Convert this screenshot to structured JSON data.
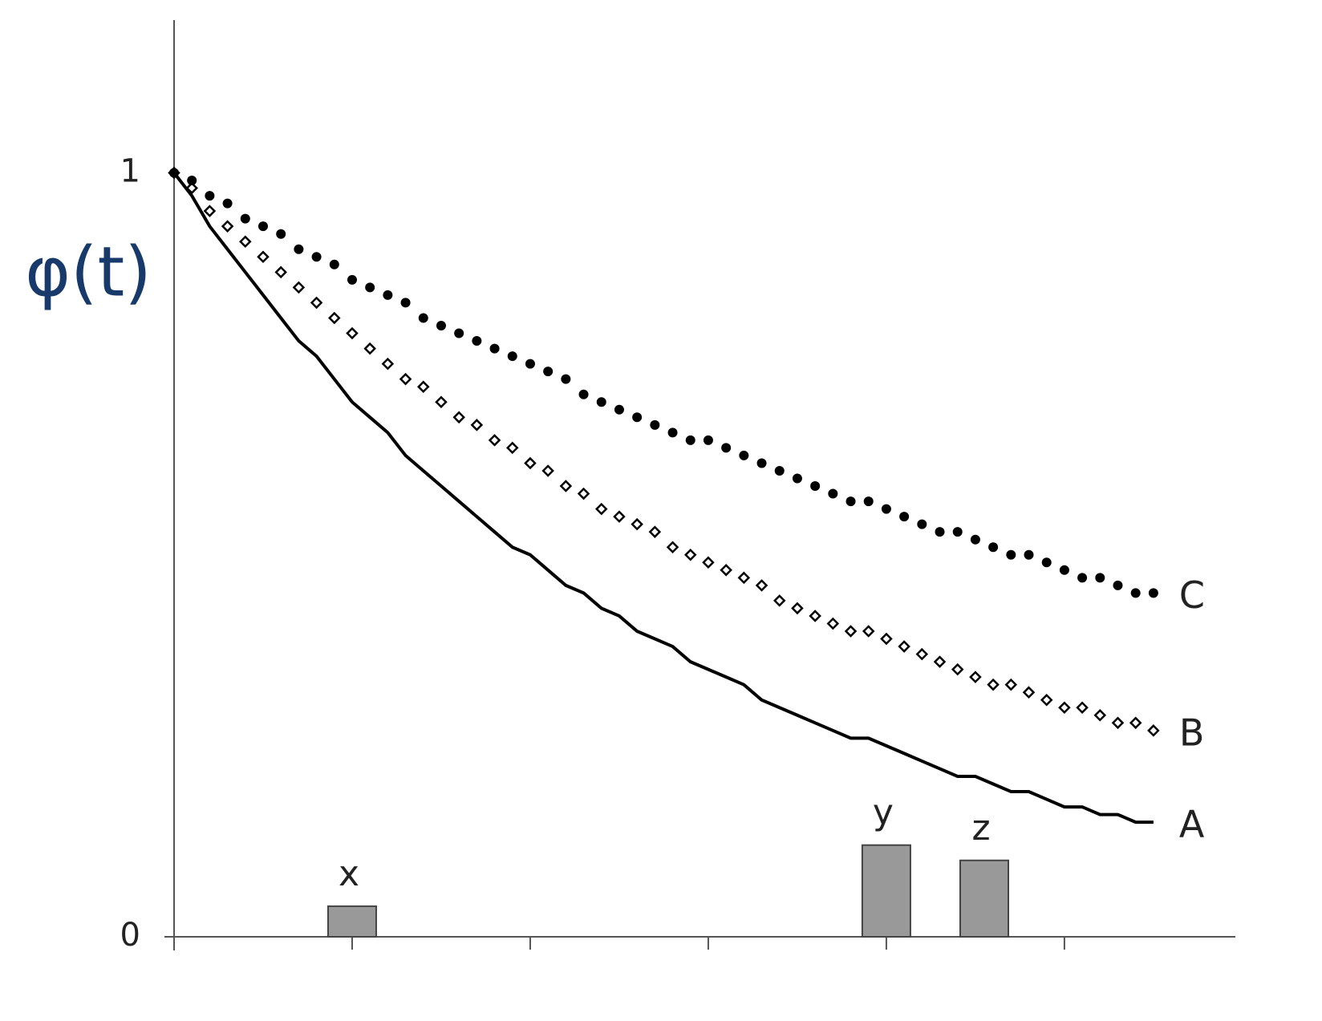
{
  "chart_data": {
    "type": "line",
    "y_label": "φ(t)",
    "xlim": [
      0,
      5.96
    ],
    "ylim": [
      0,
      1.2
    ],
    "xticks": [
      1,
      2,
      3,
      4,
      5
    ],
    "yticks": [
      0,
      1
    ],
    "x": [
      0,
      0.1,
      0.2,
      0.3,
      0.4,
      0.5,
      0.6,
      0.7,
      0.8,
      0.9,
      1.0,
      1.1,
      1.2,
      1.3,
      1.4,
      1.5,
      1.6,
      1.7,
      1.8,
      1.9,
      2.0,
      2.1,
      2.2,
      2.3,
      2.4,
      2.5,
      2.6,
      2.7,
      2.8,
      2.9,
      3.0,
      3.1,
      3.2,
      3.3,
      3.4,
      3.5,
      3.6,
      3.7,
      3.8,
      3.9,
      4.0,
      4.1,
      4.2,
      4.3,
      4.4,
      4.5,
      4.6,
      4.7,
      4.8,
      4.9,
      5.0,
      5.1,
      5.2,
      5.3,
      5.4,
      5.5
    ],
    "series": [
      {
        "name": "A",
        "color": "#000000",
        "marker": "line",
        "values": [
          1.0,
          0.97,
          0.93,
          0.9,
          0.87,
          0.84,
          0.81,
          0.78,
          0.76,
          0.73,
          0.7,
          0.68,
          0.66,
          0.63,
          0.61,
          0.59,
          0.57,
          0.55,
          0.53,
          0.51,
          0.5,
          0.48,
          0.46,
          0.45,
          0.43,
          0.42,
          0.4,
          0.39,
          0.38,
          0.36,
          0.35,
          0.34,
          0.33,
          0.31,
          0.3,
          0.29,
          0.28,
          0.27,
          0.26,
          0.26,
          0.25,
          0.24,
          0.23,
          0.22,
          0.21,
          0.21,
          0.2,
          0.19,
          0.19,
          0.18,
          0.17,
          0.17,
          0.16,
          0.16,
          0.15,
          0.15
        ]
      },
      {
        "name": "B",
        "color": "#000000",
        "marker": "diamond",
        "values": [
          1.0,
          0.98,
          0.95,
          0.93,
          0.91,
          0.89,
          0.87,
          0.85,
          0.83,
          0.81,
          0.79,
          0.77,
          0.75,
          0.73,
          0.72,
          0.7,
          0.68,
          0.67,
          0.65,
          0.64,
          0.62,
          0.61,
          0.59,
          0.58,
          0.56,
          0.55,
          0.54,
          0.53,
          0.51,
          0.5,
          0.49,
          0.48,
          0.47,
          0.46,
          0.44,
          0.43,
          0.42,
          0.41,
          0.4,
          0.4,
          0.39,
          0.38,
          0.37,
          0.36,
          0.35,
          0.34,
          0.33,
          0.33,
          0.32,
          0.31,
          0.3,
          0.3,
          0.29,
          0.28,
          0.28,
          0.27
        ]
      },
      {
        "name": "C",
        "color": "#000000",
        "marker": "dot",
        "values": [
          1.0,
          0.99,
          0.97,
          0.96,
          0.94,
          0.93,
          0.92,
          0.9,
          0.89,
          0.88,
          0.86,
          0.85,
          0.84,
          0.83,
          0.81,
          0.8,
          0.79,
          0.78,
          0.77,
          0.76,
          0.75,
          0.74,
          0.73,
          0.71,
          0.7,
          0.69,
          0.68,
          0.67,
          0.66,
          0.65,
          0.65,
          0.64,
          0.63,
          0.62,
          0.61,
          0.6,
          0.59,
          0.58,
          0.57,
          0.57,
          0.56,
          0.55,
          0.54,
          0.53,
          0.53,
          0.52,
          0.51,
          0.5,
          0.5,
          0.49,
          0.48,
          0.47,
          0.47,
          0.46,
          0.45,
          0.45
        ]
      }
    ],
    "bars": {
      "labels": [
        "x",
        "y",
        "z"
      ],
      "x": [
        1.0,
        4.0,
        4.55
      ],
      "values": [
        0.04,
        0.12,
        0.1
      ],
      "color": "#999999"
    }
  }
}
